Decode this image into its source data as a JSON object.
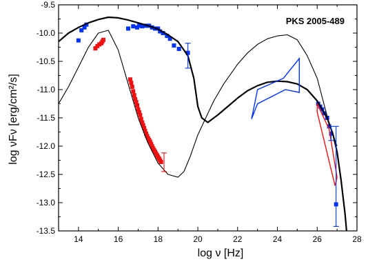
{
  "chart_data": {
    "type": "scatter",
    "annotation": "PKS 2005-489",
    "xlabel": "log ν  [Hz]",
    "ylabel": "log  νFν  [erg/cm²/s]",
    "xlim": [
      13,
      28
    ],
    "ylim": [
      -13.5,
      -9.5
    ],
    "xticks": [
      14,
      16,
      18,
      20,
      22,
      24,
      26,
      28
    ],
    "yticks": [
      -9.5,
      -10.0,
      -10.5,
      -11.0,
      -11.5,
      -12.0,
      -12.5,
      -13.0,
      -13.5
    ],
    "xtick_labels": [
      "14",
      "16",
      "18",
      "20",
      "22",
      "24",
      "26",
      "28"
    ],
    "ytick_labels": [
      "-9.5",
      "-10.0",
      "-10.5",
      "-11.0",
      "-11.5",
      "-12.0",
      "-12.5",
      "-13.0",
      "-13.5"
    ],
    "colors": {
      "blue": "#0033ff",
      "red": "#ee1111",
      "black": "#000000"
    },
    "series": [
      {
        "kind": "points",
        "color": "#0033ff",
        "x": [
          14.0,
          14.15,
          14.3,
          14.4,
          16.5,
          16.75,
          16.95,
          17.05,
          17.2,
          17.4,
          17.55,
          17.7,
          17.85,
          18.0,
          18.1,
          18.25,
          18.45,
          18.6,
          18.8,
          19.05,
          19.5
        ],
        "y": [
          -10.13,
          -9.95,
          -9.9,
          -9.85,
          -9.92,
          -9.88,
          -9.9,
          -9.87,
          -9.88,
          -9.87,
          -9.87,
          -9.9,
          -9.92,
          -9.92,
          -9.97,
          -10.0,
          -10.05,
          -10.1,
          -10.22,
          -10.28,
          -10.35
        ]
      },
      {
        "kind": "points",
        "color": "#0033ff",
        "x": [
          26.05,
          26.15,
          26.25,
          26.35,
          26.5,
          26.6,
          26.7,
          26.95
        ],
        "y": [
          -11.25,
          -11.3,
          -11.35,
          -11.42,
          -11.5,
          -11.65,
          -11.78,
          -13.03
        ]
      },
      {
        "kind": "points",
        "color": "#ee1111",
        "x": [
          14.85,
          14.95,
          15.05,
          15.15,
          15.2,
          15.25,
          16.6,
          16.65,
          16.7,
          16.75,
          16.8,
          16.85,
          16.9,
          16.95,
          17.0,
          17.05,
          17.1,
          17.15,
          17.2,
          17.25,
          17.3,
          17.35,
          17.4,
          17.45,
          17.5,
          17.55,
          17.6,
          17.65,
          17.7,
          17.75,
          17.8,
          17.85,
          17.9,
          17.95,
          18.0,
          18.05,
          18.1,
          18.15
        ],
        "y": [
          -10.27,
          -10.23,
          -10.2,
          -10.18,
          -10.15,
          -10.12,
          -10.82,
          -10.88,
          -10.95,
          -11.03,
          -11.1,
          -11.17,
          -11.22,
          -11.28,
          -11.35,
          -11.4,
          -11.45,
          -11.52,
          -11.58,
          -11.63,
          -11.68,
          -11.73,
          -11.78,
          -11.82,
          -11.86,
          -11.89,
          -11.92,
          -11.96,
          -12.0,
          -12.04,
          -12.07,
          -12.1,
          -12.13,
          -12.16,
          -12.19,
          -12.22,
          -12.25,
          -12.28
        ]
      },
      {
        "kind": "curve",
        "color": "#000000",
        "weight": "thick",
        "x": [
          13.0,
          13.5,
          14.0,
          14.5,
          15.0,
          15.5,
          16.0,
          16.5,
          17.0,
          17.5,
          18.0,
          18.5,
          19.0,
          19.5,
          19.8,
          20.0,
          20.2,
          20.5,
          21.0,
          21.5,
          22.0,
          22.5,
          23.0,
          23.5,
          24.0,
          24.5,
          25.0,
          25.5,
          26.0,
          26.5,
          26.8,
          27.0,
          27.2,
          27.4,
          27.5
        ],
        "y": [
          -10.15,
          -10.0,
          -9.9,
          -9.82,
          -9.76,
          -9.72,
          -9.73,
          -9.77,
          -9.82,
          -9.87,
          -9.93,
          -10.03,
          -10.15,
          -10.4,
          -10.8,
          -11.3,
          -11.5,
          -11.58,
          -11.45,
          -11.3,
          -11.15,
          -11.02,
          -10.93,
          -10.87,
          -10.85,
          -10.86,
          -10.9,
          -11.0,
          -11.2,
          -11.5,
          -11.8,
          -12.1,
          -12.6,
          -13.2,
          -13.6
        ]
      },
      {
        "kind": "curve",
        "color": "#000000",
        "weight": "thin",
        "x": [
          13.0,
          13.5,
          14.0,
          14.5,
          15.0,
          15.5,
          16.0,
          16.5,
          17.0,
          17.5,
          18.0,
          18.5,
          19.0,
          19.3,
          19.6,
          20.0,
          20.4,
          20.8,
          21.3,
          22.0,
          22.5,
          23.0,
          23.5,
          24.0,
          24.5,
          25.0,
          25.5,
          26.0,
          26.3,
          26.6,
          27.0
        ],
        "y": [
          -11.25,
          -10.95,
          -10.6,
          -10.25,
          -10.0,
          -9.95,
          -10.3,
          -10.9,
          -11.5,
          -11.95,
          -12.3,
          -12.5,
          -12.55,
          -12.45,
          -12.2,
          -11.8,
          -11.5,
          -11.2,
          -10.9,
          -10.55,
          -10.35,
          -10.2,
          -10.1,
          -10.05,
          -10.03,
          -10.12,
          -10.4,
          -10.8,
          -11.2,
          -11.6,
          -12.0
        ]
      },
      {
        "kind": "polygon",
        "color": "#0033ff",
        "x": [
          22.7,
          23.0,
          24.3,
          25.1,
          25.1,
          24.4,
          23.0,
          22.7
        ],
        "y": [
          -11.52,
          -11.0,
          -10.8,
          -10.45,
          -11.05,
          -11.0,
          -11.25,
          -11.52
        ]
      },
      {
        "kind": "polygon",
        "color": "#ee1111",
        "x": [
          26.0,
          26.6,
          27.0,
          26.9,
          26.0
        ],
        "y": [
          -11.25,
          -11.7,
          -12.55,
          -12.7,
          -11.4
        ]
      }
    ],
    "error_bars": [
      {
        "color": "#0033ff",
        "x": 19.5,
        "y": -10.35,
        "lo": -10.62,
        "hi": -10.18
      },
      {
        "color": "#ee1111",
        "x": 18.3,
        "y": -12.28,
        "lo": -12.45,
        "hi": -12.12
      },
      {
        "color": "#0033ff",
        "x": 26.95,
        "y": -13.03,
        "lo": -13.42,
        "hi": -11.65
      },
      {
        "color": "#0033ff",
        "x": 26.7,
        "y": -11.78,
        "lo": -11.9,
        "hi": -11.65
      }
    ]
  }
}
